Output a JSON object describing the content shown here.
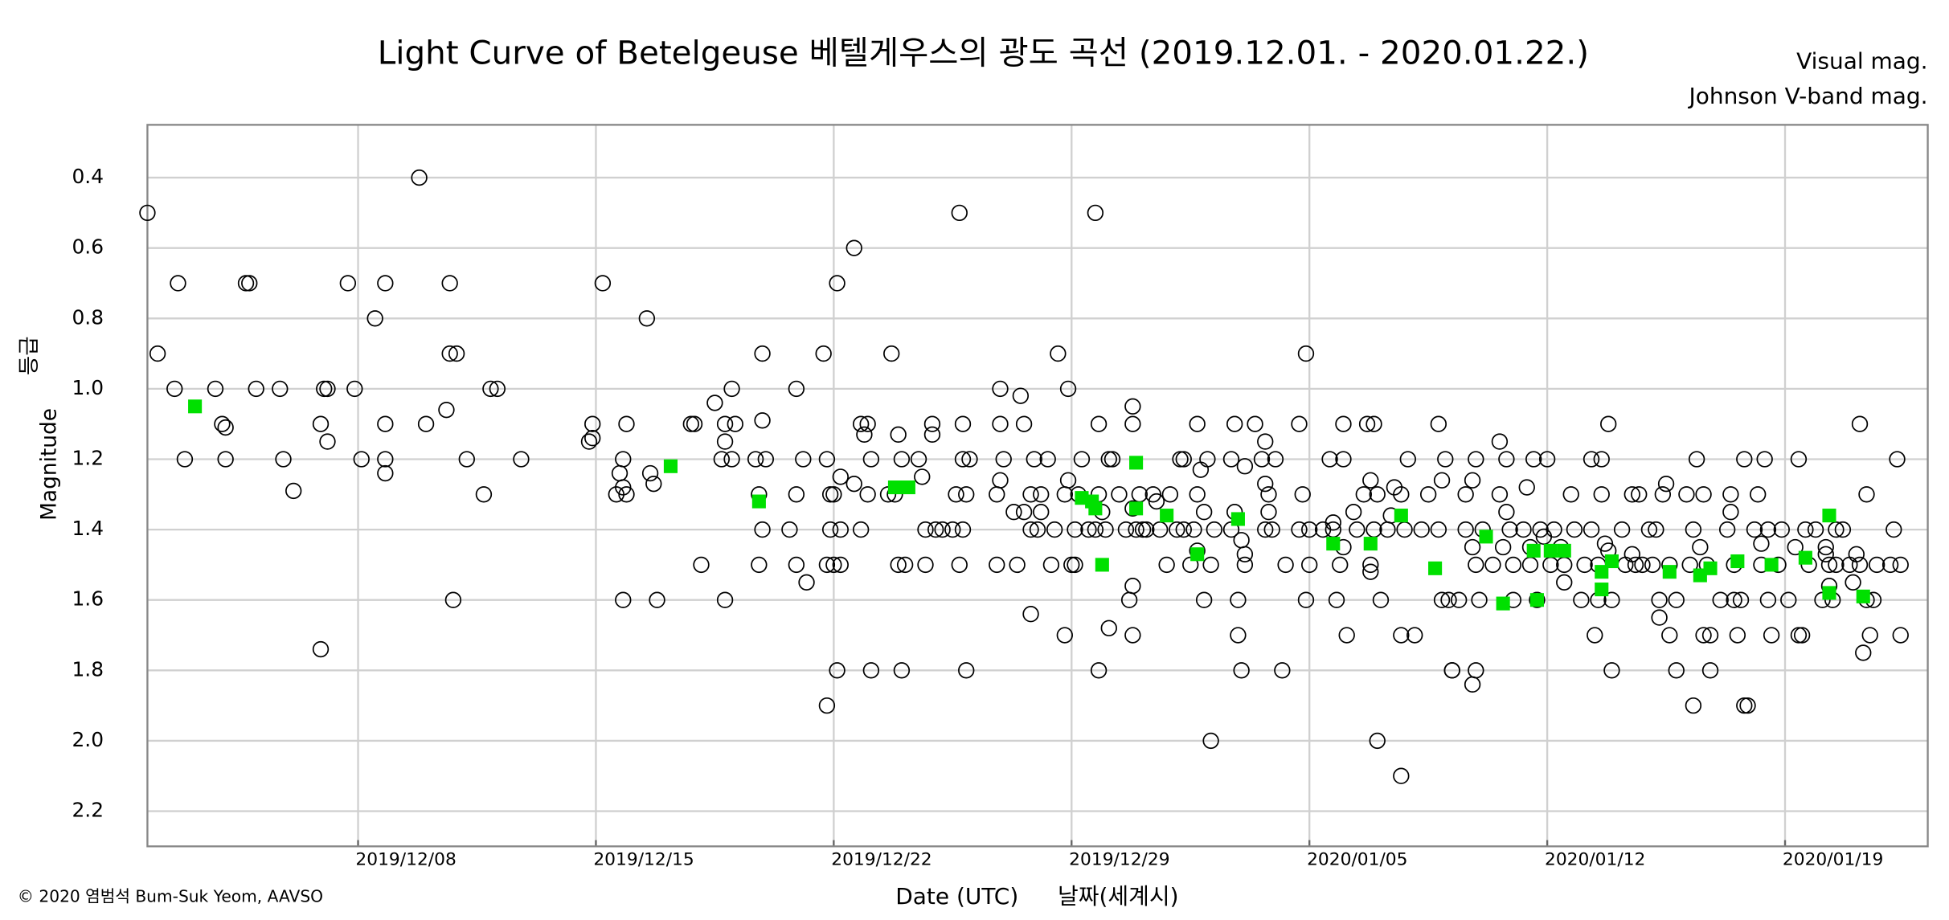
{
  "chart_data": {
    "type": "scatter",
    "title": "Light Curve of Betelgeuse   베텔게우스의 광도 곡선 (2019.12.01. - 2020.01.22.)",
    "x_label": "Date (UTC)",
    "x_label_2": "날짜(세계시)",
    "y_label": "Magnitude",
    "y_label_2": "등급",
    "credit": "© 2020 염범석 Bum-Suk Yeom, AAVSO",
    "xlim": [
      0.8,
      53.2
    ],
    "xticks": [
      {
        "value": 7,
        "label": "2019/12/08"
      },
      {
        "value": 14,
        "label": "2019/12/15"
      },
      {
        "value": 21,
        "label": "2019/12/22"
      },
      {
        "value": 28,
        "label": "2019/12/29"
      },
      {
        "value": 35,
        "label": "2020/01/05"
      },
      {
        "value": 42,
        "label": "2020/01/12"
      },
      {
        "value": 49,
        "label": "2020/01/19"
      }
    ],
    "ylim": [
      0.25,
      2.3
    ],
    "y_inverted": true,
    "yticks": [
      0.4,
      0.6,
      0.8,
      {
        "value": 1,
        "label": "1.0"
      },
      1.2,
      1.4,
      1.6,
      1.8,
      {
        "value": 2,
        "label": "2.0"
      },
      2.2
    ],
    "grid": true,
    "legend": "top-right",
    "series": [
      {
        "name": "Visual mag.",
        "color": "#000000",
        "marker": "circle",
        "x": [
          0.8,
          1.1,
          1.7,
          1.6,
          1.9,
          2.8,
          3.0,
          3.1,
          3.1,
          3.7,
          3.8,
          4.0,
          4.7,
          4.8,
          5.1,
          5.9,
          5.9,
          6.0,
          6.1,
          6.1,
          6.7,
          6.9,
          7.1,
          7.5,
          7.8,
          7.8,
          7.8,
          7.8,
          8.8,
          9.0,
          9.6,
          9.7,
          9.7,
          9.8,
          9.9,
          10.2,
          10.7,
          10.9,
          11.1,
          11.8,
          13.8,
          13.9,
          13.9,
          14.2,
          14.6,
          14.7,
          14.8,
          14.8,
          14.9,
          14.9,
          14.8,
          15.5,
          15.6,
          15.7,
          15.8,
          16.8,
          16.9,
          17.1,
          17.5,
          17.8,
          17.8,
          17.7,
          17.8,
          18.0,
          18.0,
          18.1,
          18.7,
          18.8,
          18.8,
          18.9,
          18.9,
          18.9,
          19.0,
          19.7,
          19.9,
          19.9,
          19.9,
          20.1,
          20.2,
          20.7,
          20.8,
          20.8,
          20.8,
          20.9,
          20.9,
          21.0,
          21.0,
          21.1,
          21.1,
          21.2,
          21.2,
          21.2,
          21.6,
          21.6,
          21.8,
          21.8,
          21.9,
          22.0,
          22.0,
          22.1,
          22.1,
          22.6,
          22.7,
          22.8,
          22.9,
          22.9,
          23.0,
          23.0,
          23.1,
          23.5,
          23.6,
          23.7,
          23.7,
          23.9,
          23.9,
          24.0,
          24.2,
          24.5,
          24.6,
          24.7,
          24.7,
          24.8,
          24.8,
          24.8,
          24.9,
          24.9,
          25.0,
          25.8,
          25.8,
          25.9,
          25.9,
          25.9,
          26.0,
          26.3,
          26.4,
          26.5,
          26.6,
          26.6,
          26.8,
          26.8,
          26.8,
          26.9,
          27.0,
          27.1,
          27.1,
          27.3,
          27.4,
          27.5,
          27.6,
          27.8,
          27.8,
          27.9,
          27.9,
          28.0,
          28.1,
          28.1,
          28.2,
          28.3,
          28.5,
          28.7,
          28.7,
          28.8,
          28.8,
          28.8,
          28.9,
          29.0,
          29.1,
          29.1,
          29.2,
          29.4,
          29.6,
          29.7,
          29.8,
          29.8,
          29.8,
          29.8,
          29.8,
          29.9,
          30.0,
          30.1,
          30.2,
          30.4,
          30.5,
          30.6,
          30.8,
          30.9,
          31.1,
          31.2,
          31.3,
          31.3,
          31.5,
          31.6,
          31.7,
          31.7,
          31.7,
          31.8,
          31.9,
          31.9,
          32.0,
          32.1,
          32.1,
          32.2,
          32.7,
          32.7,
          32.8,
          32.8,
          32.9,
          32.9,
          33.0,
          33.0,
          33.1,
          33.1,
          33.1,
          33.4,
          33.6,
          33.7,
          33.7,
          33.7,
          33.8,
          33.8,
          33.9,
          34.0,
          34.2,
          34.3,
          34.7,
          34.7,
          34.8,
          34.9,
          34.9,
          35.0,
          35.0,
          35.4,
          35.6,
          35.7,
          35.7,
          35.8,
          35.9,
          36.0,
          36.0,
          36.0,
          36.1,
          36.3,
          36.4,
          36.6,
          36.7,
          36.8,
          36.8,
          36.8,
          36.9,
          36.9,
          37.0,
          37.0,
          37.1,
          37.3,
          37.4,
          37.5,
          37.7,
          37.7,
          37.7,
          37.8,
          37.9,
          38.1,
          38.3,
          38.5,
          38.8,
          38.8,
          38.9,
          38.9,
          39.0,
          39.1,
          39.2,
          39.2,
          39.4,
          39.6,
          39.6,
          39.8,
          39.8,
          39.8,
          39.9,
          39.9,
          39.9,
          40.0,
          40.1,
          40.4,
          40.6,
          40.6,
          40.7,
          40.8,
          40.8,
          40.9,
          41.0,
          41.0,
          41.3,
          41.4,
          41.5,
          41.5,
          41.6,
          41.7,
          41.8,
          41.9,
          42.0,
          42.1,
          42.2,
          42.4,
          42.5,
          42.5,
          42.7,
          42.8,
          43.0,
          43.1,
          43.3,
          43.3,
          43.4,
          43.5,
          43.5,
          43.6,
          43.6,
          43.7,
          43.8,
          43.8,
          43.9,
          43.9,
          44.2,
          44.3,
          44.5,
          44.5,
          44.6,
          44.7,
          44.8,
          45.0,
          45.1,
          45.2,
          45.3,
          45.3,
          45.4,
          45.5,
          45.6,
          45.6,
          45.8,
          45.8,
          46.1,
          46.2,
          46.3,
          46.3,
          46.4,
          46.5,
          46.6,
          46.6,
          46.7,
          46.8,
          46.8,
          47.1,
          47.3,
          47.4,
          47.4,
          47.5,
          47.5,
          47.6,
          47.7,
          47.8,
          47.8,
          47.9,
          48.1,
          48.2,
          48.3,
          48.3,
          48.4,
          48.5,
          48.5,
          48.6,
          48.8,
          48.9,
          49.1,
          49.3,
          49.4,
          49.4,
          49.5,
          49.6,
          49.7,
          49.9,
          50.1,
          50.2,
          50.2,
          50.3,
          50.3,
          50.4,
          50.5,
          50.5,
          50.7,
          50.9,
          51.0,
          51.1,
          51.2,
          51.2,
          51.3,
          51.4,
          51.4,
          51.5,
          51.6,
          51.7,
          52.1,
          52.2,
          52.3,
          52.4,
          52.4
        ],
        "values": [
          0.5,
          0.9,
          0.7,
          1.0,
          1.2,
          1.0,
          1.1,
          1.11,
          1.2,
          0.7,
          0.7,
          1.0,
          1.0,
          1.2,
          1.29,
          1.74,
          1.1,
          1.0,
          1.15,
          1.0,
          0.7,
          1.0,
          1.2,
          0.8,
          0.7,
          1.24,
          1.1,
          1.2,
          0.4,
          1.1,
          1.06,
          0.7,
          0.9,
          1.6,
          0.9,
          1.2,
          1.3,
          1.0,
          1.0,
          1.2,
          1.15,
          1.1,
          1.14,
          0.7,
          1.3,
          1.24,
          1.28,
          1.6,
          1.3,
          1.1,
          1.2,
          0.8,
          1.24,
          1.27,
          1.6,
          1.1,
          1.1,
          1.5,
          1.04,
          1.1,
          1.15,
          1.2,
          1.6,
          1.0,
          1.2,
          1.1,
          1.2,
          1.5,
          1.3,
          0.9,
          1.4,
          1.09,
          1.2,
          1.4,
          1.0,
          1.3,
          1.5,
          1.2,
          1.55,
          0.9,
          1.5,
          1.2,
          1.9,
          1.3,
          1.4,
          1.5,
          1.3,
          0.7,
          1.8,
          1.25,
          1.4,
          1.5,
          1.27,
          0.6,
          1.1,
          1.4,
          1.13,
          1.3,
          1.1,
          1.8,
          1.2,
          1.3,
          0.9,
          1.3,
          1.5,
          1.13,
          1.2,
          1.8,
          1.5,
          1.2,
          1.25,
          1.5,
          1.4,
          1.1,
          1.13,
          1.4,
          1.4,
          1.4,
          1.3,
          0.5,
          1.5,
          1.1,
          1.2,
          1.4,
          1.3,
          1.8,
          1.2,
          1.5,
          1.3,
          1.26,
          1.1,
          1.0,
          1.2,
          1.35,
          1.5,
          1.02,
          1.35,
          1.1,
          1.4,
          1.64,
          1.3,
          1.2,
          1.4,
          1.3,
          1.35,
          1.2,
          1.5,
          1.4,
          0.9,
          1.7,
          1.3,
          1.0,
          1.26,
          1.5,
          1.4,
          1.5,
          1.3,
          1.2,
          1.4,
          1.4,
          0.5,
          1.1,
          1.8,
          1.3,
          1.35,
          1.4,
          1.2,
          1.68,
          1.2,
          1.3,
          1.4,
          1.6,
          1.7,
          1.34,
          1.1,
          1.05,
          1.56,
          1.4,
          1.3,
          1.4,
          1.4,
          1.3,
          1.32,
          1.4,
          1.5,
          1.3,
          1.4,
          1.2,
          1.2,
          1.4,
          1.5,
          1.4,
          1.3,
          1.46,
          1.1,
          1.23,
          1.35,
          1.6,
          1.2,
          2.0,
          1.5,
          1.4,
          1.4,
          1.2,
          1.35,
          1.1,
          1.7,
          1.6,
          1.8,
          1.43,
          1.47,
          1.5,
          1.22,
          1.1,
          1.2,
          1.15,
          1.27,
          1.4,
          1.3,
          1.35,
          1.4,
          1.2,
          1.8,
          1.5,
          1.1,
          1.4,
          1.3,
          1.6,
          0.9,
          1.5,
          1.4,
          1.4,
          1.2,
          1.38,
          1.4,
          1.6,
          1.5,
          1.2,
          1.1,
          1.45,
          1.7,
          1.35,
          1.4,
          1.3,
          1.1,
          1.52,
          1.26,
          1.5,
          1.1,
          1.4,
          2.0,
          1.3,
          1.6,
          1.4,
          1.36,
          1.28,
          2.1,
          1.3,
          1.7,
          1.4,
          1.2,
          1.7,
          1.4,
          1.3,
          1.4,
          1.1,
          1.26,
          1.6,
          1.2,
          1.6,
          1.8,
          1.8,
          1.6,
          1.4,
          1.3,
          1.45,
          1.26,
          1.84,
          1.2,
          1.5,
          1.8,
          1.6,
          1.4,
          1.5,
          1.15,
          1.3,
          1.45,
          1.35,
          1.2,
          1.4,
          1.5,
          1.6,
          1.4,
          1.28,
          1.45,
          1.5,
          1.2,
          1.6,
          1.4,
          1.42,
          1.2,
          1.5,
          1.4,
          1.45,
          1.55,
          1.5,
          1.3,
          1.4,
          1.6,
          1.5,
          1.4,
          1.2,
          1.7,
          1.6,
          1.5,
          1.3,
          1.2,
          1.44,
          1.46,
          1.1,
          1.8,
          1.6,
          1.4,
          1.5,
          1.3,
          1.47,
          1.5,
          1.3,
          1.5,
          1.4,
          1.5,
          1.4,
          1.65,
          1.6,
          1.3,
          1.27,
          1.7,
          1.5,
          1.8,
          1.6,
          1.3,
          1.5,
          1.4,
          1.9,
          1.2,
          1.45,
          1.7,
          1.3,
          1.5,
          1.7,
          1.8,
          1.6,
          1.4,
          1.3,
          1.35,
          1.5,
          1.6,
          1.7,
          1.6,
          1.9,
          1.2,
          1.9,
          1.4,
          1.3,
          1.44,
          1.5,
          1.2,
          1.4,
          1.6,
          1.7,
          1.5,
          1.4,
          1.6,
          1.45,
          1.7,
          1.2,
          1.7,
          1.4,
          1.5,
          1.4,
          1.6,
          1.45,
          1.47,
          1.5,
          1.56,
          1.6,
          1.4,
          1.5,
          1.4,
          1.5,
          1.55,
          1.47,
          1.5,
          1.1,
          1.75,
          1.6,
          1.3,
          1.7,
          1.6,
          1.5,
          1.5,
          1.4,
          1.2,
          1.5,
          1.7
        ]
      },
      {
        "name": "Johnson V-band mag.",
        "color": "#00e000",
        "marker": "square",
        "x": [
          2.2,
          16.2,
          18.8,
          22.8,
          23.2,
          28.3,
          28.6,
          28.7,
          28.9,
          29.9,
          29.9,
          30.8,
          31.7,
          32.9,
          35.7,
          36.8,
          37.7,
          38.7,
          40.2,
          40.7,
          41.7,
          41.6,
          42.1,
          42.5,
          43.6,
          43.6,
          43.9,
          45.6,
          46.5,
          46.8,
          47.6,
          48.6,
          49.6,
          50.3,
          50.3,
          51.3
        ],
        "values": [
          1.05,
          1.22,
          1.32,
          1.28,
          1.28,
          1.31,
          1.32,
          1.34,
          1.5,
          1.21,
          1.34,
          1.36,
          1.47,
          1.37,
          1.44,
          1.44,
          1.36,
          1.51,
          1.42,
          1.61,
          1.6,
          1.46,
          1.46,
          1.46,
          1.52,
          1.57,
          1.49,
          1.52,
          1.53,
          1.51,
          1.49,
          1.5,
          1.48,
          1.36,
          1.58,
          1.59
        ]
      }
    ]
  }
}
